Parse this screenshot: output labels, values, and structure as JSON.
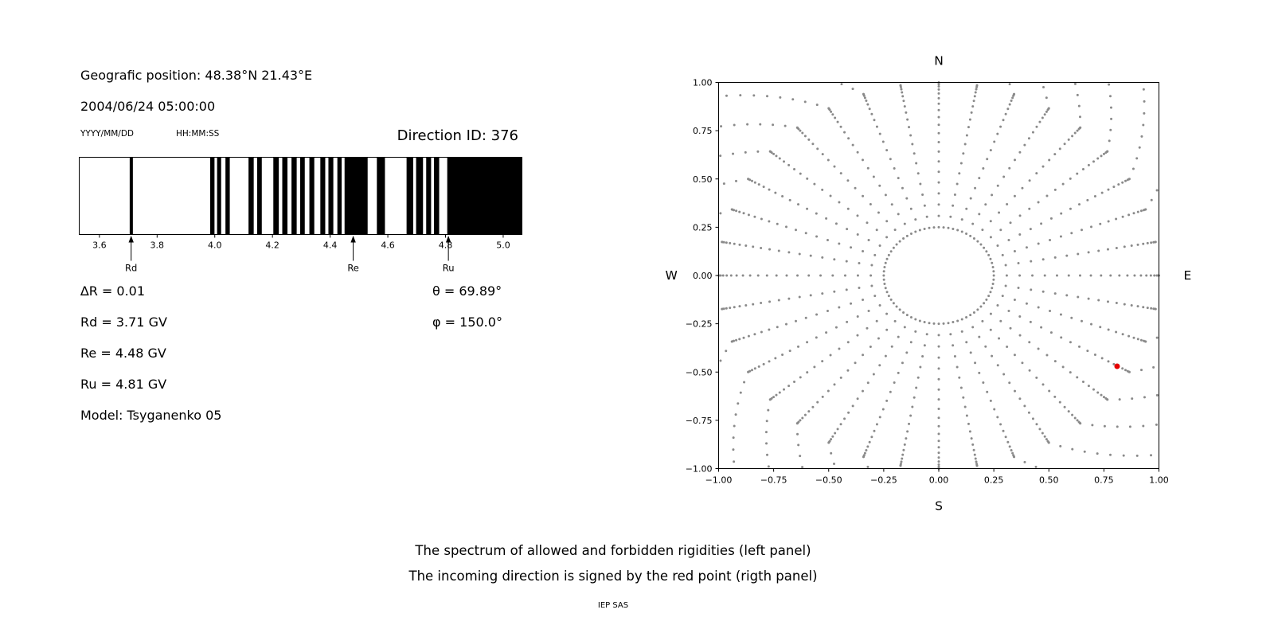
{
  "header": {
    "geo_position": "Geografic position: 48.38°N 21.43°E",
    "datetime": "2004/06/24 05:00:00",
    "date_format": "YYYY/MM/DD",
    "time_format": "HH:MM:SS",
    "direction_id": "Direction ID: 376"
  },
  "left_panel": {
    "delta_r": "∆R = 0.01",
    "theta": "θ = 69.89°",
    "rd": "Rd = 3.71 GV",
    "phi": "φ = 150.0°",
    "re": "Re = 4.48 GV",
    "ru": "Ru = 4.81 GV",
    "model": "Model: Tsyganenko 05"
  },
  "captions": {
    "line1": "The spectrum of allowed and forbidden rigidities (left panel)",
    "line2": "The incoming direction is signed by the red point (rigth panel)",
    "credit": "IEP SAS"
  },
  "chart_data": [
    {
      "type": "bar",
      "title": "Direction ID: 376",
      "xlabel": "",
      "ylabel": "",
      "xlim": [
        3.53,
        5.065
      ],
      "grid": false,
      "tick_values": [
        3.6,
        3.8,
        4.0,
        4.2,
        4.4,
        4.6,
        4.8,
        5.0
      ],
      "tick_labels": [
        "3.6",
        "3.8",
        "4.0",
        "4.2",
        "4.4",
        "4.6",
        "4.8",
        "5.0"
      ],
      "bar_color": "#000000",
      "forbidden_bands_GV": [
        [
          3.705,
          3.716
        ],
        [
          3.984,
          3.999
        ],
        [
          4.008,
          4.022
        ],
        [
          4.037,
          4.052
        ],
        [
          4.117,
          4.135
        ],
        [
          4.147,
          4.163
        ],
        [
          4.203,
          4.222
        ],
        [
          4.234,
          4.252
        ],
        [
          4.266,
          4.284
        ],
        [
          4.296,
          4.312
        ],
        [
          4.328,
          4.345
        ],
        [
          4.366,
          4.383
        ],
        [
          4.394,
          4.411
        ],
        [
          4.425,
          4.44
        ],
        [
          4.45,
          4.53
        ],
        [
          4.562,
          4.59
        ],
        [
          4.665,
          4.688
        ],
        [
          4.698,
          4.722
        ],
        [
          4.733,
          4.75
        ],
        [
          4.76,
          4.778
        ],
        [
          4.806,
          5.065
        ]
      ],
      "markers": [
        {
          "label": "Rd",
          "value": 3.71
        },
        {
          "label": "Re",
          "value": 4.48
        },
        {
          "label": "Ru",
          "value": 4.81
        }
      ]
    },
    {
      "type": "scatter",
      "title": "",
      "xlabel": "",
      "ylabel": "",
      "xlim": [
        -1,
        1
      ],
      "ylim": [
        -1,
        1
      ],
      "grid": false,
      "tick_values": [
        -1,
        -0.75,
        -0.5,
        -0.25,
        0,
        0.25,
        0.5,
        0.75,
        1
      ],
      "tick_labels": [
        "−1.00",
        "−0.75",
        "−0.50",
        "−0.25",
        "0.00",
        "0.25",
        "0.50",
        "0.75",
        "1.00"
      ],
      "compass": {
        "top": "N",
        "right": "E",
        "bottom": "S",
        "left": "W"
      },
      "grid_dots": {
        "color": "#8a8a8a",
        "ring_radius": 0.25,
        "ring_azimuth_step_deg": 5,
        "azimuth_step_deg": 10,
        "spoke_r_start": 0.25,
        "dots_per_spoke": 20,
        "extension_dots": 8,
        "extension_reach": 0.34,
        "extension_curve_deg": 16
      },
      "red_point": {
        "x": 0.81,
        "y": -0.47,
        "color": "#e50000"
      },
      "incoming_direction": {
        "theta_deg": 69.89,
        "phi_deg": 150.0
      }
    }
  ]
}
